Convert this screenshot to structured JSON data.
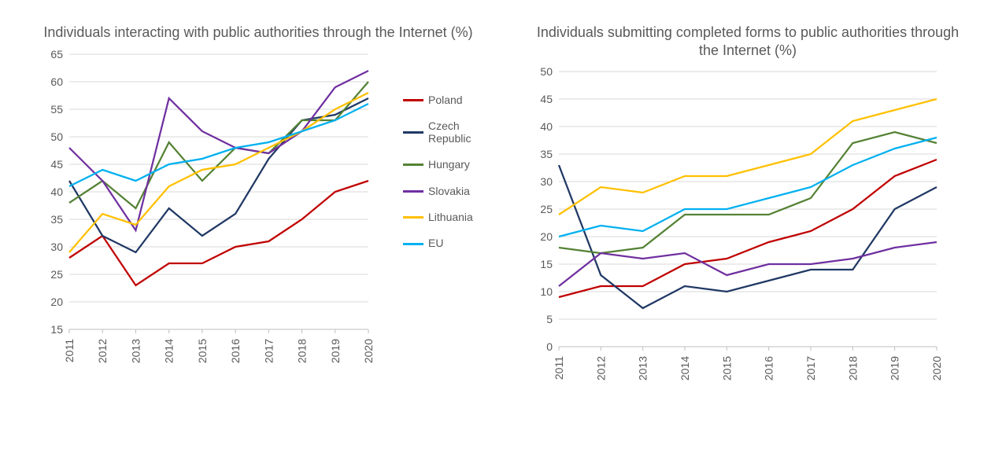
{
  "chart1": {
    "type": "line",
    "title": "Individuals interacting with public authorities through the Internet (%)",
    "title_fontsize": 18,
    "title_color": "#595959",
    "background_color": "#ffffff",
    "grid_color": "#d9d9d9",
    "axis_text_color": "#595959",
    "axis_fontsize": 14,
    "xlabels": [
      "2011",
      "2012",
      "2013",
      "2014",
      "2015",
      "2016",
      "2017",
      "2018",
      "2019",
      "2020"
    ],
    "ylim": [
      15,
      65
    ],
    "ytick_step": 5,
    "yticks": [
      15,
      20,
      25,
      30,
      35,
      40,
      45,
      50,
      55,
      60,
      65
    ],
    "x_rotate": 90,
    "line_width": 2.25,
    "series": [
      {
        "name": "Poland",
        "color": "#c00000",
        "values": [
          28,
          32,
          23,
          27,
          27,
          30,
          31,
          35,
          40,
          42
        ]
      },
      {
        "name": "Czech Republic",
        "color": "#203864",
        "values": [
          42,
          32,
          29,
          37,
          32,
          36,
          46,
          53,
          54,
          57
        ]
      },
      {
        "name": "Hungary",
        "color": "#548235",
        "values": [
          38,
          42,
          37,
          49,
          42,
          48,
          47,
          53,
          53,
          60
        ]
      },
      {
        "name": "Slovakia",
        "color": "#7030a0",
        "values": [
          48,
          42,
          33,
          57,
          51,
          48,
          47,
          51,
          59,
          62
        ]
      },
      {
        "name": "Lithuania",
        "color": "#ffc000",
        "values": [
          29,
          36,
          34,
          41,
          44,
          45,
          48,
          51,
          55,
          58
        ]
      },
      {
        "name": "EU",
        "color": "#00b0f0",
        "values": [
          41,
          44,
          42,
          45,
          46,
          48,
          49,
          51,
          53,
          56
        ]
      }
    ]
  },
  "chart2": {
    "type": "line",
    "title": "Individuals submitting completed forms to public authorities through the Internet (%)",
    "title_fontsize": 18,
    "title_color": "#595959",
    "background_color": "#ffffff",
    "grid_color": "#d9d9d9",
    "axis_text_color": "#595959",
    "axis_fontsize": 14,
    "xlabels": [
      "2011",
      "2012",
      "2013",
      "2014",
      "2015",
      "2016",
      "2017",
      "2018",
      "2019",
      "2020"
    ],
    "ylim": [
      0,
      50
    ],
    "ytick_step": 5,
    "yticks": [
      0,
      5,
      10,
      15,
      20,
      25,
      30,
      35,
      40,
      45,
      50
    ],
    "x_rotate": 90,
    "line_width": 2.25,
    "series": [
      {
        "name": "Poland",
        "color": "#c00000",
        "values": [
          9,
          11,
          11,
          15,
          16,
          19,
          21,
          25,
          31,
          34
        ]
      },
      {
        "name": "Czech Republic",
        "color": "#203864",
        "values": [
          33,
          13,
          7,
          11,
          10,
          12,
          14,
          14,
          25,
          29
        ]
      },
      {
        "name": "Hungary",
        "color": "#548235",
        "values": [
          18,
          17,
          18,
          24,
          24,
          24,
          27,
          37,
          39,
          37
        ]
      },
      {
        "name": "Slovakia",
        "color": "#7030a0",
        "values": [
          11,
          17,
          16,
          17,
          13,
          15,
          15,
          16,
          18,
          19
        ]
      },
      {
        "name": "Lithuania",
        "color": "#ffc000",
        "values": [
          24,
          29,
          28,
          31,
          31,
          33,
          35,
          41,
          43,
          45
        ]
      },
      {
        "name": "EU",
        "color": "#00b0f0",
        "values": [
          20,
          22,
          21,
          25,
          25,
          27,
          29,
          33,
          36,
          38
        ]
      }
    ]
  },
  "legend": {
    "items": [
      {
        "label": "Poland",
        "color": "#c00000"
      },
      {
        "label": "Czech\nRepublic",
        "color": "#203864"
      },
      {
        "label": "Hungary",
        "color": "#548235"
      },
      {
        "label": "Slovakia",
        "color": "#7030a0"
      },
      {
        "label": "Lithuania",
        "color": "#ffc000"
      },
      {
        "label": "EU",
        "color": "#00b0f0"
      }
    ],
    "fontsize": 14,
    "text_color": "#595959"
  }
}
